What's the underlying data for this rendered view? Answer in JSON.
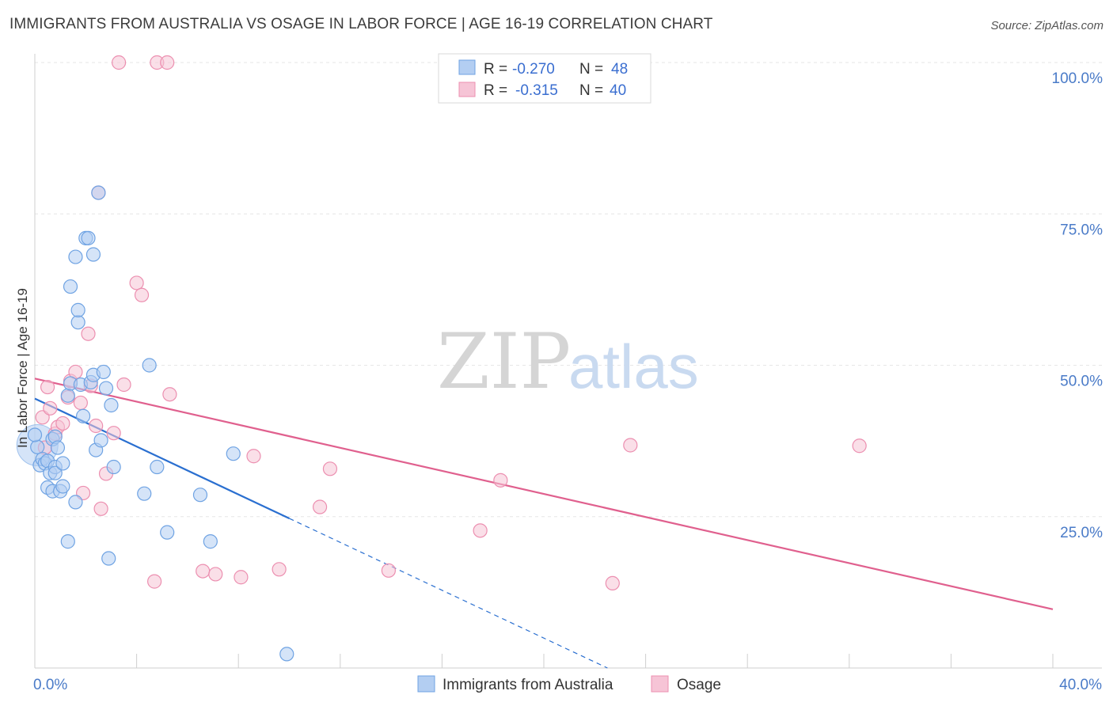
{
  "title": "IMMIGRANTS FROM AUSTRALIA VS OSAGE IN LABOR FORCE | AGE 16-19 CORRELATION CHART",
  "source": "Source: ZipAtlas.com",
  "watermark": {
    "zip": "ZIP",
    "atlas": "atlas"
  },
  "chart_data": {
    "type": "scatter",
    "title": "IMMIGRANTS FROM AUSTRALIA VS OSAGE IN LABOR FORCE | AGE 16-19 CORRELATION CHART",
    "xlabel": "",
    "ylabel": "In Labor Force | Age 16-19",
    "xlim": [
      0,
      40
    ],
    "ylim": [
      0,
      102
    ],
    "x_tick_labels": [
      {
        "value": 0,
        "label": "0.0%"
      },
      {
        "value": 40,
        "label": "40.0%"
      }
    ],
    "y_tick_labels": [
      {
        "value": 25,
        "label": "25.0%"
      },
      {
        "value": 50,
        "label": "50.0%"
      },
      {
        "value": 75,
        "label": "75.0%"
      },
      {
        "value": 100,
        "label": "100.0%"
      }
    ],
    "grid": true,
    "legend_position": "bottom-center",
    "stats_box": [
      {
        "r_label": "R = ",
        "r": "-0.270",
        "n_label": "N = ",
        "n": "48"
      },
      {
        "r_label": "R = ",
        "r": "-0.315",
        "n_label": "N = ",
        "n": "40"
      }
    ],
    "series": [
      {
        "name": "Immigrants from Australia",
        "color": "#6fa3e3",
        "fill": "#b3cef2",
        "line_color": "#2a6fd0",
        "r": -0.27,
        "n": 48,
        "trend": {
          "x": [
            0,
            10
          ],
          "y": [
            44.5,
            24.7
          ]
        },
        "trend_dashed": {
          "x": [
            10,
            22.5
          ],
          "y": [
            24.7,
            0
          ]
        },
        "points": [
          [
            0.1,
            36.5
          ],
          [
            0.2,
            33.5
          ],
          [
            0.3,
            34.5
          ],
          [
            0.4,
            33.8
          ],
          [
            0.5,
            34.2
          ],
          [
            0.5,
            29.8
          ],
          [
            0.6,
            32.2
          ],
          [
            0.7,
            29.2
          ],
          [
            0.7,
            37.8
          ],
          [
            0.8,
            33.2
          ],
          [
            0.8,
            32.2
          ],
          [
            0.8,
            38.2
          ],
          [
            0.9,
            36.4
          ],
          [
            1.0,
            29.2
          ],
          [
            1.1,
            30.0
          ],
          [
            1.1,
            33.8
          ],
          [
            1.3,
            20.9
          ],
          [
            1.3,
            45.0
          ],
          [
            1.4,
            47.0
          ],
          [
            1.4,
            63.0
          ],
          [
            1.6,
            27.4
          ],
          [
            1.6,
            67.9
          ],
          [
            1.7,
            57.1
          ],
          [
            1.7,
            59.1
          ],
          [
            1.8,
            46.8
          ],
          [
            1.9,
            41.6
          ],
          [
            2.0,
            71.0
          ],
          [
            2.1,
            71.0
          ],
          [
            2.2,
            47.2
          ],
          [
            2.3,
            68.3
          ],
          [
            2.3,
            48.4
          ],
          [
            2.4,
            36.0
          ],
          [
            2.5,
            78.5
          ],
          [
            2.6,
            37.6
          ],
          [
            2.7,
            48.9
          ],
          [
            2.8,
            46.2
          ],
          [
            2.9,
            18.1
          ],
          [
            3.0,
            43.4
          ],
          [
            3.1,
            33.2
          ],
          [
            4.3,
            28.8
          ],
          [
            4.5,
            50.0
          ],
          [
            4.8,
            33.2
          ],
          [
            5.2,
            22.4
          ],
          [
            6.5,
            28.6
          ],
          [
            6.9,
            20.9
          ],
          [
            7.8,
            35.4
          ],
          [
            9.9,
            2.3
          ],
          [
            0.0,
            38.5
          ]
        ]
      },
      {
        "name": "Osage",
        "color": "#ec8fb0",
        "fill": "#f6c4d6",
        "line_color": "#e0608e",
        "r": -0.315,
        "n": 40,
        "trend": {
          "x": [
            0,
            40
          ],
          "y": [
            47.8,
            9.7
          ]
        },
        "points": [
          [
            0.3,
            41.4
          ],
          [
            0.4,
            36.4
          ],
          [
            0.5,
            46.4
          ],
          [
            0.6,
            42.9
          ],
          [
            0.8,
            38.7
          ],
          [
            0.9,
            39.8
          ],
          [
            1.1,
            40.4
          ],
          [
            1.3,
            44.7
          ],
          [
            1.4,
            47.4
          ],
          [
            1.6,
            48.9
          ],
          [
            1.8,
            43.8
          ],
          [
            1.9,
            28.9
          ],
          [
            2.1,
            55.2
          ],
          [
            2.2,
            46.6
          ],
          [
            2.4,
            40.0
          ],
          [
            2.6,
            26.3
          ],
          [
            2.8,
            32.1
          ],
          [
            3.1,
            38.8
          ],
          [
            3.5,
            46.8
          ],
          [
            3.3,
            100.0
          ],
          [
            4.0,
            63.6
          ],
          [
            4.2,
            61.6
          ],
          [
            4.7,
            14.3
          ],
          [
            4.8,
            100.0
          ],
          [
            5.2,
            100.0
          ],
          [
            5.3,
            45.2
          ],
          [
            6.6,
            16.0
          ],
          [
            7.1,
            15.5
          ],
          [
            8.1,
            15.0
          ],
          [
            8.6,
            35.0
          ],
          [
            9.6,
            16.3
          ],
          [
            11.2,
            26.6
          ],
          [
            11.6,
            32.9
          ],
          [
            13.9,
            16.1
          ],
          [
            17.5,
            22.7
          ],
          [
            18.3,
            31.0
          ],
          [
            22.7,
            14.0
          ],
          [
            23.4,
            36.8
          ],
          [
            32.4,
            36.7
          ],
          [
            2.5,
            78.5
          ]
        ]
      }
    ]
  }
}
